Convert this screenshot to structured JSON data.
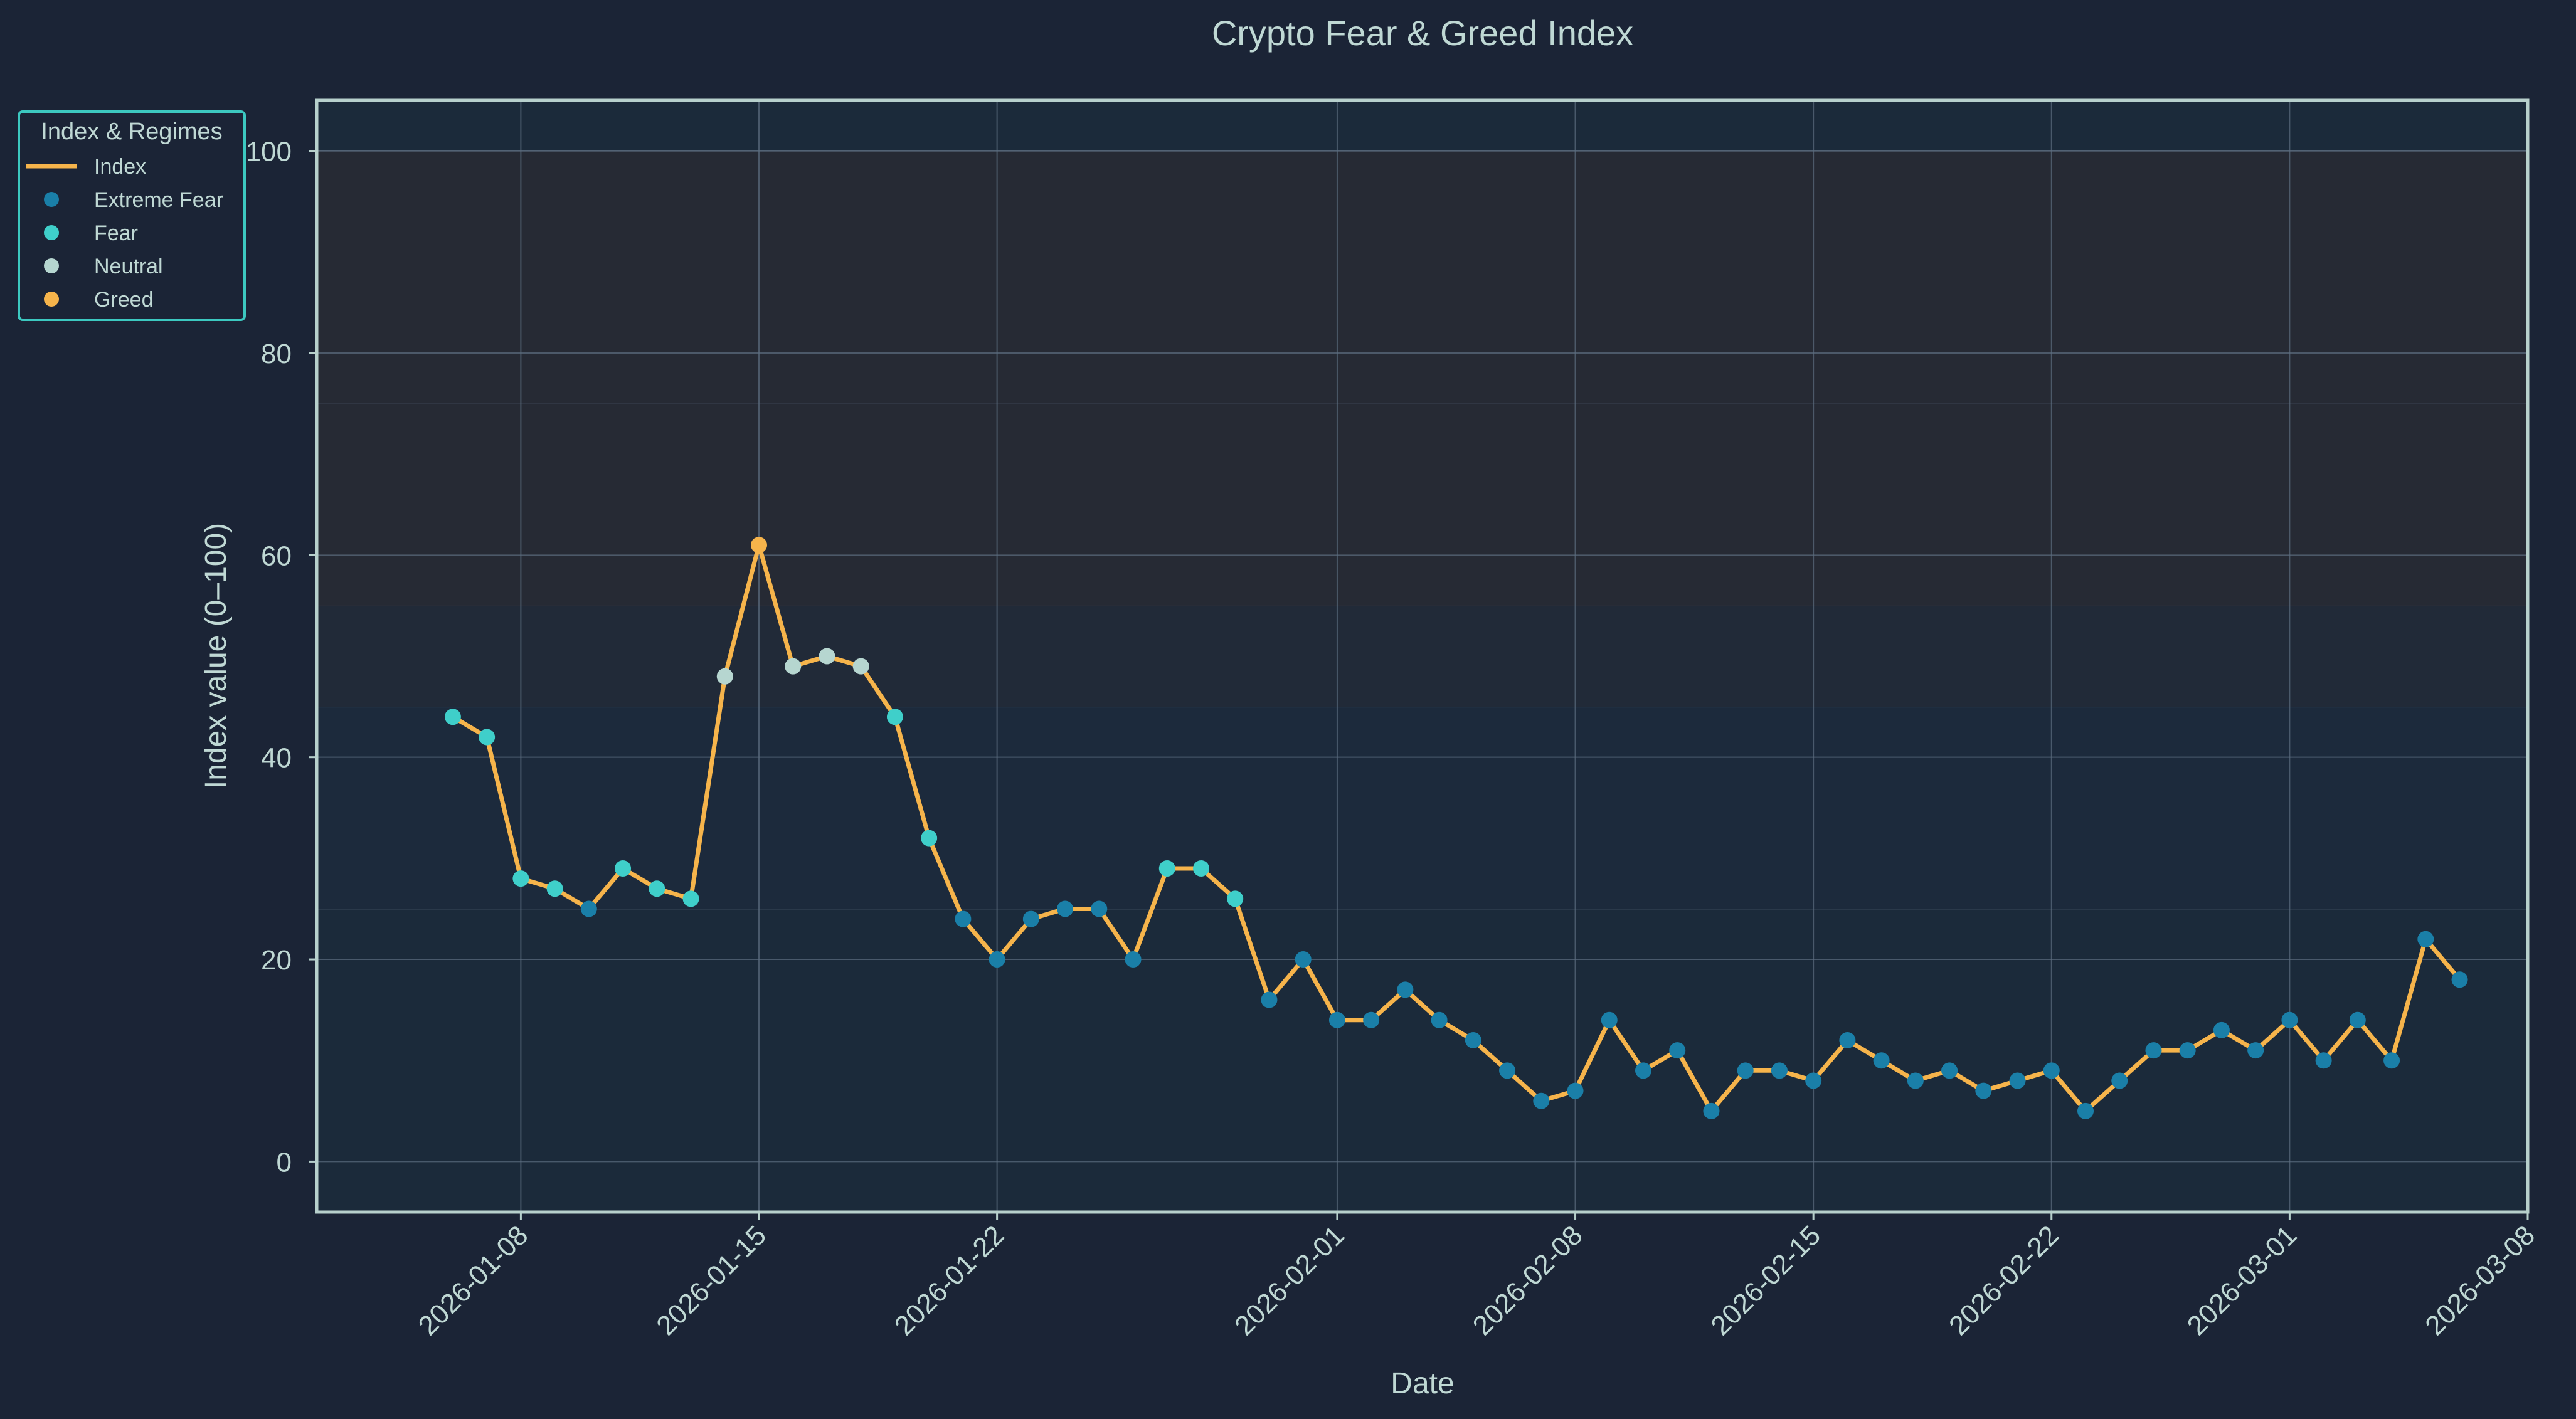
{
  "colors": {
    "background": "#1b2436",
    "axes_background": "#1b2a3a",
    "frame": "#b7d0cc",
    "text": "#bfd8d4",
    "grid": "#5d6d80",
    "line": "#f6b44b",
    "legend_border": "#3cc8c0",
    "band_greed": "#262a34",
    "band_neutral": "#212a38",
    "band_fear": "#1c2a3c",
    "band_extreme_fear": "#1b2a3a"
  },
  "chart_data": {
    "type": "line",
    "title": "Crypto Fear & Greed Index",
    "xlabel": "Date",
    "ylabel": "Index value (0–100)",
    "ylim": [
      -5,
      105
    ],
    "xlim": [
      "2026-01-02",
      "2026-03-08"
    ],
    "y_ticks": [
      0,
      20,
      40,
      60,
      80,
      100
    ],
    "x_ticks": [
      "2026-01-08",
      "2026-01-15",
      "2026-01-22",
      "2026-02-01",
      "2026-02-08",
      "2026-02-15",
      "2026-02-22",
      "2026-03-01",
      "2026-03-08"
    ],
    "grid": true,
    "regime_bands": [
      {
        "from": 0,
        "to": 25,
        "regime": "Extreme Fear"
      },
      {
        "from": 25,
        "to": 45,
        "regime": "Fear"
      },
      {
        "from": 45,
        "to": 55,
        "regime": "Neutral"
      },
      {
        "from": 55,
        "to": 75,
        "regime": "Greed"
      },
      {
        "from": 75,
        "to": 100,
        "regime": "Greed"
      }
    ],
    "legend": {
      "title": "Index & Regimes",
      "placement": "upper-left, outside axes",
      "entries": [
        {
          "label": "Index",
          "kind": "line",
          "color": "#f6b44b"
        },
        {
          "label": "Extreme Fear",
          "kind": "marker",
          "color": "#1a7fa8"
        },
        {
          "label": "Fear",
          "kind": "marker",
          "color": "#3fcfca"
        },
        {
          "label": "Neutral",
          "kind": "marker",
          "color": "#b6d6d0"
        },
        {
          "label": "Greed",
          "kind": "marker",
          "color": "#f6b44b"
        }
      ]
    },
    "series": [
      {
        "name": "Index",
        "color": "#f6b44b",
        "points": [
          {
            "x": "2026-01-06",
            "y": 44,
            "regime": "Fear"
          },
          {
            "x": "2026-01-07",
            "y": 42,
            "regime": "Fear"
          },
          {
            "x": "2026-01-08",
            "y": 28,
            "regime": "Fear"
          },
          {
            "x": "2026-01-09",
            "y": 27,
            "regime": "Fear"
          },
          {
            "x": "2026-01-10",
            "y": 25,
            "regime": "Extreme Fear"
          },
          {
            "x": "2026-01-11",
            "y": 29,
            "regime": "Fear"
          },
          {
            "x": "2026-01-12",
            "y": 27,
            "regime": "Fear"
          },
          {
            "x": "2026-01-13",
            "y": 26,
            "regime": "Fear"
          },
          {
            "x": "2026-01-14",
            "y": 48,
            "regime": "Neutral"
          },
          {
            "x": "2026-01-15",
            "y": 61,
            "regime": "Greed"
          },
          {
            "x": "2026-01-16",
            "y": 49,
            "regime": "Neutral"
          },
          {
            "x": "2026-01-17",
            "y": 50,
            "regime": "Neutral"
          },
          {
            "x": "2026-01-18",
            "y": 49,
            "regime": "Neutral"
          },
          {
            "x": "2026-01-19",
            "y": 44,
            "regime": "Fear"
          },
          {
            "x": "2026-01-20",
            "y": 32,
            "regime": "Fear"
          },
          {
            "x": "2026-01-21",
            "y": 24,
            "regime": "Extreme Fear"
          },
          {
            "x": "2026-01-22",
            "y": 20,
            "regime": "Extreme Fear"
          },
          {
            "x": "2026-01-23",
            "y": 24,
            "regime": "Extreme Fear"
          },
          {
            "x": "2026-01-24",
            "y": 25,
            "regime": "Extreme Fear"
          },
          {
            "x": "2026-01-25",
            "y": 25,
            "regime": "Extreme Fear"
          },
          {
            "x": "2026-01-26",
            "y": 20,
            "regime": "Extreme Fear"
          },
          {
            "x": "2026-01-27",
            "y": 29,
            "regime": "Fear"
          },
          {
            "x": "2026-01-28",
            "y": 29,
            "regime": "Fear"
          },
          {
            "x": "2026-01-29",
            "y": 26,
            "regime": "Fear"
          },
          {
            "x": "2026-01-30",
            "y": 16,
            "regime": "Extreme Fear"
          },
          {
            "x": "2026-01-31",
            "y": 20,
            "regime": "Extreme Fear"
          },
          {
            "x": "2026-02-01",
            "y": 14,
            "regime": "Extreme Fear"
          },
          {
            "x": "2026-02-02",
            "y": 14,
            "regime": "Extreme Fear"
          },
          {
            "x": "2026-02-03",
            "y": 17,
            "regime": "Extreme Fear"
          },
          {
            "x": "2026-02-04",
            "y": 14,
            "regime": "Extreme Fear"
          },
          {
            "x": "2026-02-05",
            "y": 12,
            "regime": "Extreme Fear"
          },
          {
            "x": "2026-02-06",
            "y": 9,
            "regime": "Extreme Fear"
          },
          {
            "x": "2026-02-07",
            "y": 6,
            "regime": "Extreme Fear"
          },
          {
            "x": "2026-02-08",
            "y": 7,
            "regime": "Extreme Fear"
          },
          {
            "x": "2026-02-09",
            "y": 14,
            "regime": "Extreme Fear"
          },
          {
            "x": "2026-02-10",
            "y": 9,
            "regime": "Extreme Fear"
          },
          {
            "x": "2026-02-11",
            "y": 11,
            "regime": "Extreme Fear"
          },
          {
            "x": "2026-02-12",
            "y": 5,
            "regime": "Extreme Fear"
          },
          {
            "x": "2026-02-13",
            "y": 9,
            "regime": "Extreme Fear"
          },
          {
            "x": "2026-02-14",
            "y": 9,
            "regime": "Extreme Fear"
          },
          {
            "x": "2026-02-15",
            "y": 8,
            "regime": "Extreme Fear"
          },
          {
            "x": "2026-02-16",
            "y": 12,
            "regime": "Extreme Fear"
          },
          {
            "x": "2026-02-17",
            "y": 10,
            "regime": "Extreme Fear"
          },
          {
            "x": "2026-02-18",
            "y": 8,
            "regime": "Extreme Fear"
          },
          {
            "x": "2026-02-19",
            "y": 9,
            "regime": "Extreme Fear"
          },
          {
            "x": "2026-02-20",
            "y": 7,
            "regime": "Extreme Fear"
          },
          {
            "x": "2026-02-21",
            "y": 8,
            "regime": "Extreme Fear"
          },
          {
            "x": "2026-02-22",
            "y": 9,
            "regime": "Extreme Fear"
          },
          {
            "x": "2026-02-23",
            "y": 5,
            "regime": "Extreme Fear"
          },
          {
            "x": "2026-02-24",
            "y": 8,
            "regime": "Extreme Fear"
          },
          {
            "x": "2026-02-25",
            "y": 11,
            "regime": "Extreme Fear"
          },
          {
            "x": "2026-02-26",
            "y": 11,
            "regime": "Extreme Fear"
          },
          {
            "x": "2026-02-27",
            "y": 13,
            "regime": "Extreme Fear"
          },
          {
            "x": "2026-02-28",
            "y": 11,
            "regime": "Extreme Fear"
          },
          {
            "x": "2026-03-01",
            "y": 14,
            "regime": "Extreme Fear"
          },
          {
            "x": "2026-03-02",
            "y": 10,
            "regime": "Extreme Fear"
          },
          {
            "x": "2026-03-03",
            "y": 14,
            "regime": "Extreme Fear"
          },
          {
            "x": "2026-03-04",
            "y": 10,
            "regime": "Extreme Fear"
          },
          {
            "x": "2026-03-05",
            "y": 22,
            "regime": "Extreme Fear"
          },
          {
            "x": "2026-03-06",
            "y": 18,
            "regime": "Extreme Fear"
          }
        ]
      }
    ]
  }
}
